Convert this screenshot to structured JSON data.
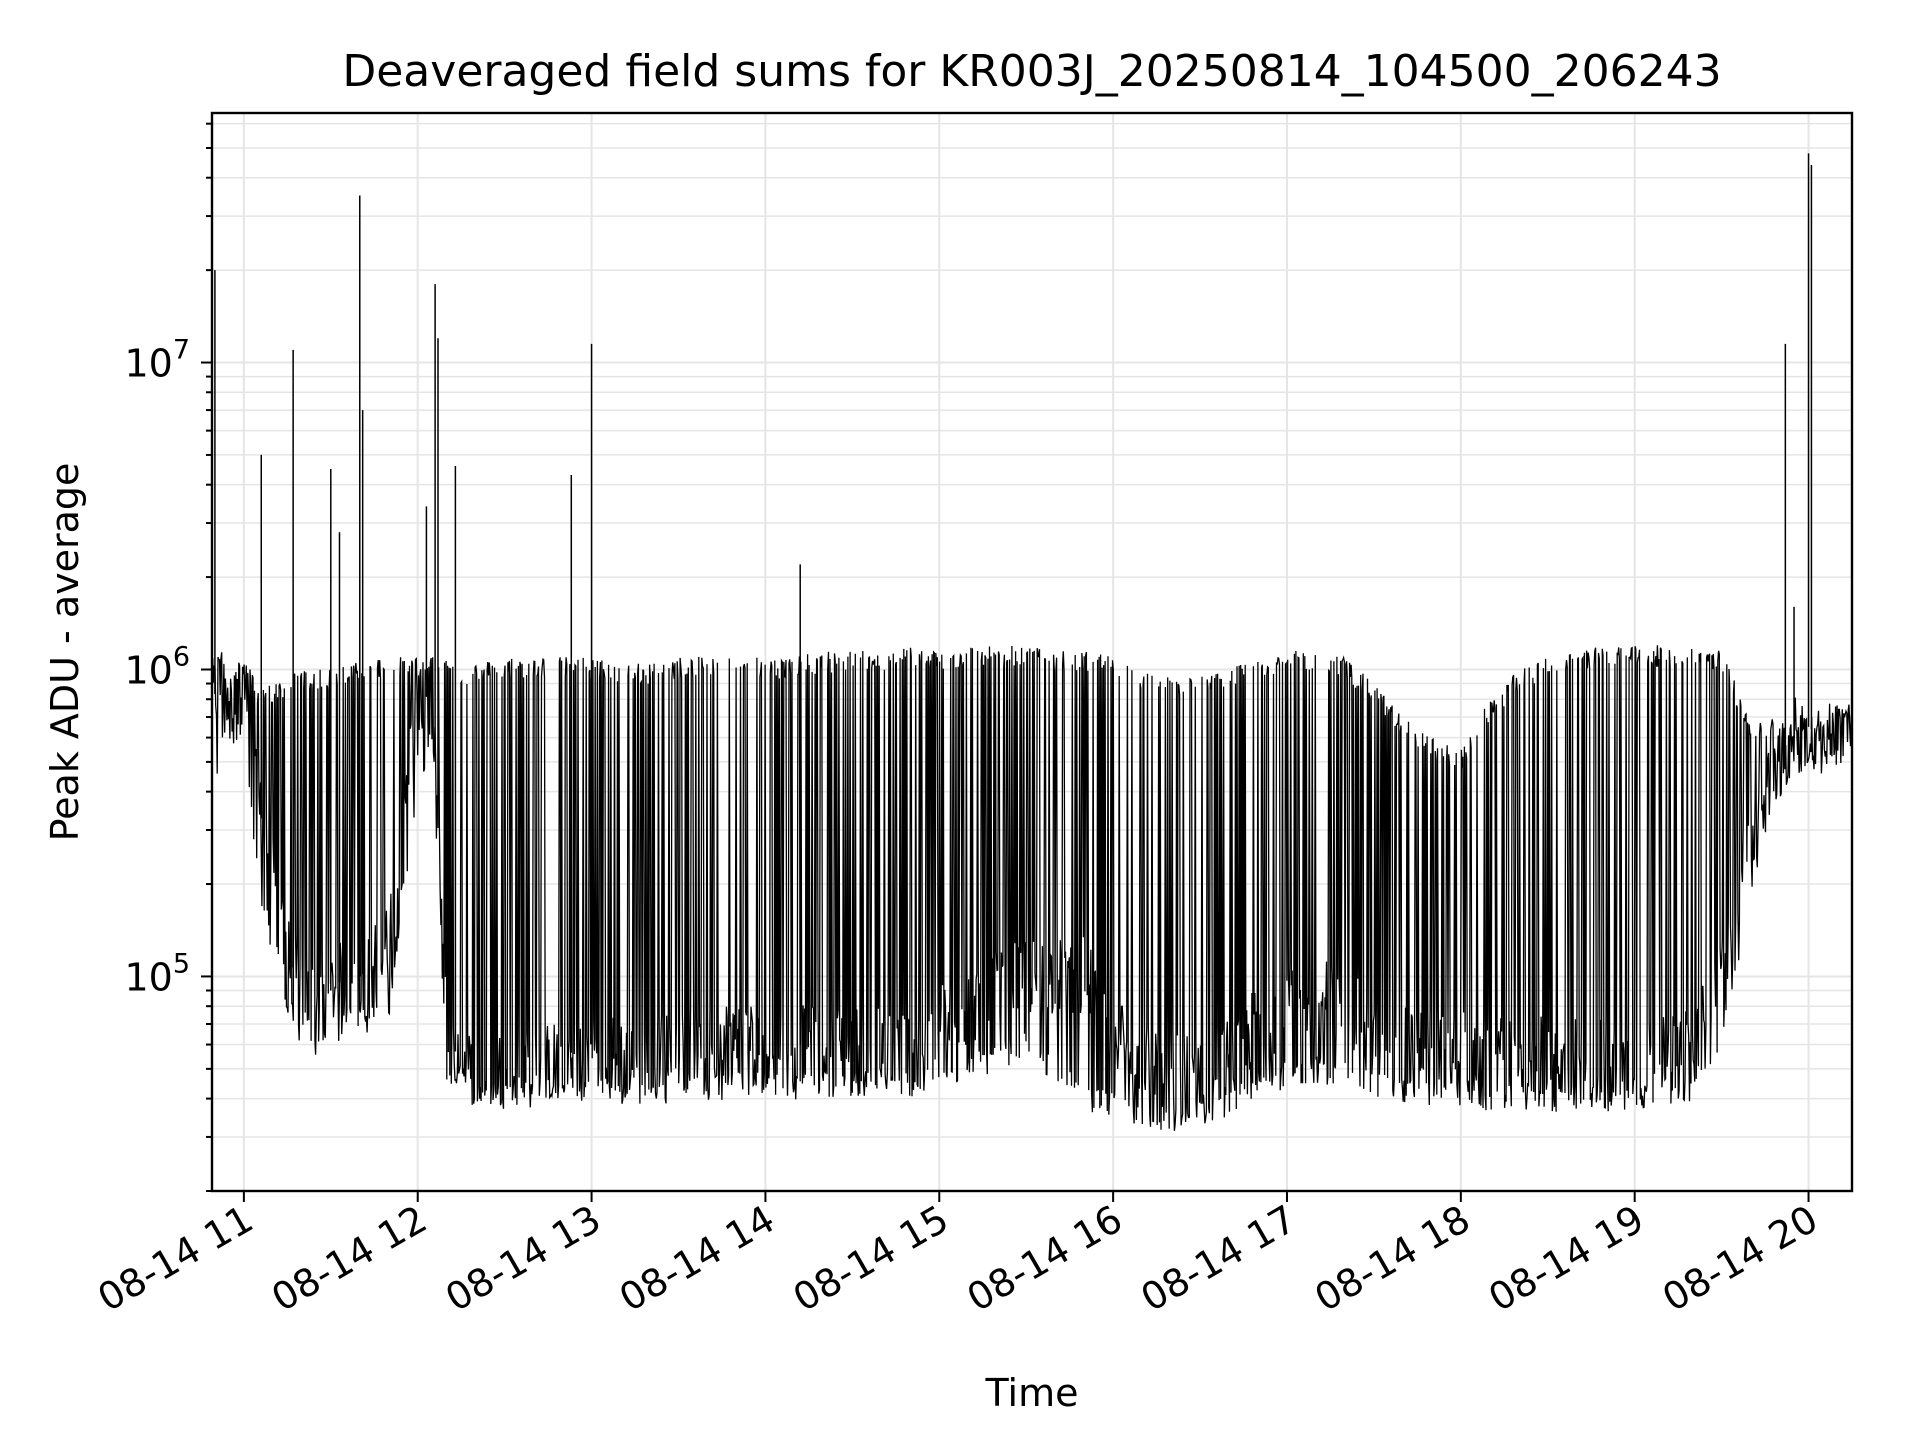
{
  "chart_data": {
    "type": "line",
    "title": "Deaveraged field sums for KR003J_20250814_104500_206243",
    "xlabel": "Time",
    "ylabel": "Peak ADU - average",
    "x_tick_labels": [
      "08-14 11",
      "08-14 12",
      "08-14 13",
      "08-14 14",
      "08-14 15",
      "08-14 16",
      "08-14 17",
      "08-14 18",
      "08-14 19",
      "08-14 20"
    ],
    "x_tick_times": [
      "2025-08-14T11:00",
      "2025-08-14T12:00",
      "2025-08-14T13:00",
      "2025-08-14T14:00",
      "2025-08-14T15:00",
      "2025-08-14T16:00",
      "2025-08-14T17:00",
      "2025-08-14T18:00",
      "2025-08-14T19:00",
      "2025-08-14T20:00"
    ],
    "xlim": [
      "2025-08-14T10:49",
      "2025-08-14T20:15"
    ],
    "y_scale": "log",
    "y_ticks": [
      {
        "value": 100000,
        "base": "10",
        "exp": "5"
      },
      {
        "value": 1000000,
        "base": "10",
        "exp": "6"
      },
      {
        "value": 10000000,
        "base": "10",
        "exp": "7"
      }
    ],
    "ylim": [
      20000,
      65000000
    ],
    "grid": true,
    "line_color": "#000000",
    "series": [
      {
        "x": [
          "2025-08-14T10:49",
          "2025-08-14T10:52",
          "2025-08-14T10:55",
          "2025-08-14T11:00",
          "2025-08-14T11:05",
          "2025-08-14T11:10",
          "2025-08-14T11:15",
          "2025-08-14T11:20",
          "2025-08-14T11:25",
          "2025-08-14T11:30",
          "2025-08-14T11:35",
          "2025-08-14T11:40",
          "2025-08-14T11:45",
          "2025-08-14T11:50",
          "2025-08-14T11:55",
          "2025-08-14T12:00",
          "2025-08-14T12:05",
          "2025-08-14T12:10",
          "2025-08-14T12:15",
          "2025-08-14T12:20",
          "2025-08-14T12:30",
          "2025-08-14T12:40",
          "2025-08-14T12:50",
          "2025-08-14T13:00",
          "2025-08-14T13:10",
          "2025-08-14T13:20",
          "2025-08-14T13:30",
          "2025-08-14T13:40",
          "2025-08-14T13:50",
          "2025-08-14T14:00",
          "2025-08-14T14:10",
          "2025-08-14T14:20",
          "2025-08-14T14:30",
          "2025-08-14T14:40",
          "2025-08-14T14:50",
          "2025-08-14T15:00",
          "2025-08-14T15:10",
          "2025-08-14T15:20",
          "2025-08-14T15:30",
          "2025-08-14T15:40",
          "2025-08-14T15:50",
          "2025-08-14T16:00",
          "2025-08-14T16:10",
          "2025-08-14T16:20",
          "2025-08-14T16:30",
          "2025-08-14T16:40",
          "2025-08-14T16:50",
          "2025-08-14T17:00",
          "2025-08-14T17:10",
          "2025-08-14T17:20",
          "2025-08-14T17:30",
          "2025-08-14T17:40",
          "2025-08-14T17:50",
          "2025-08-14T18:00",
          "2025-08-14T18:10",
          "2025-08-14T18:20",
          "2025-08-14T18:30",
          "2025-08-14T18:40",
          "2025-08-14T18:50",
          "2025-08-14T19:00",
          "2025-08-14T19:10",
          "2025-08-14T19:20",
          "2025-08-14T19:30",
          "2025-08-14T19:40",
          "2025-08-14T19:50",
          "2025-08-14T19:55",
          "2025-08-14T20:00",
          "2025-08-14T20:05",
          "2025-08-14T20:10",
          "2025-08-14T20:15"
        ],
        "y": [
          800000,
          900000,
          1000000,
          900000,
          350000,
          250000,
          120000,
          90000,
          80000,
          90000,
          100000,
          100000,
          110000,
          130000,
          400000,
          700000,
          900000,
          60000,
          55000,
          50000,
          50000,
          50000,
          55000,
          60000,
          55000,
          55000,
          60000,
          60000,
          65000,
          60000,
          60000,
          60000,
          60000,
          60000,
          60000,
          70000,
          80000,
          90000,
          100000,
          100000,
          100000,
          70000,
          55000,
          50000,
          50000,
          55000,
          70000,
          80000,
          90000,
          80000,
          65000,
          60000,
          60000,
          58000,
          55000,
          55000,
          55000,
          55000,
          55000,
          55000,
          55000,
          60000,
          100000,
          300000,
          500000,
          600000,
          650000,
          600000,
          650000,
          700000
        ],
        "envelope_upper": [
          1000000,
          1200000,
          1100000,
          1100000,
          900000,
          900000,
          950000,
          1000000,
          1000000,
          1000000,
          1050000,
          1100000,
          1100000,
          1100000,
          1100000,
          1100000,
          1150000,
          1100000,
          1050000,
          1050000,
          1100000,
          1100000,
          1100000,
          1100000,
          1050000,
          1050000,
          1100000,
          1100000,
          1150000,
          1100000,
          1100000,
          1150000,
          1150000,
          1150000,
          1200000,
          1150000,
          1200000,
          1200000,
          1200000,
          1150000,
          1150000,
          1100000,
          1000000,
          950000,
          950000,
          1000000,
          1100000,
          1150000,
          1150000,
          1100000,
          900000,
          700000,
          600000,
          550000,
          800000,
          1000000,
          1100000,
          1150000,
          1200000,
          1200000,
          1200000,
          1200000,
          1150000,
          700000,
          700000,
          700000,
          750000,
          700000,
          750000,
          800000
        ],
        "envelope_lower": [
          350000,
          600000,
          650000,
          600000,
          200000,
          130000,
          80000,
          65000,
          60000,
          65000,
          70000,
          70000,
          75000,
          80000,
          200000,
          400000,
          600000,
          50000,
          45000,
          42000,
          42000,
          42000,
          43000,
          43000,
          42000,
          42000,
          43000,
          43000,
          45000,
          45000,
          44000,
          45000,
          45000,
          45000,
          45000,
          46000,
          50000,
          55000,
          60000,
          50000,
          40000,
          38000,
          35000,
          34000,
          35000,
          38000,
          45000,
          48000,
          50000,
          48000,
          45000,
          43000,
          42000,
          42000,
          40000,
          40000,
          40000,
          40000,
          40000,
          40000,
          42000,
          43000,
          60000,
          200000,
          450000,
          500000,
          520000,
          500000,
          550000,
          600000
        ]
      }
    ],
    "spikes": [
      {
        "x": "2025-08-14T10:50",
        "y": 20000000
      },
      {
        "x": "2025-08-14T11:06",
        "y": 5000000
      },
      {
        "x": "2025-08-14T11:17",
        "y": 11000000
      },
      {
        "x": "2025-08-14T11:30",
        "y": 4500000
      },
      {
        "x": "2025-08-14T11:33",
        "y": 2800000
      },
      {
        "x": "2025-08-14T11:40",
        "y": 35000000
      },
      {
        "x": "2025-08-14T11:41",
        "y": 7000000
      },
      {
        "x": "2025-08-14T12:03",
        "y": 3400000
      },
      {
        "x": "2025-08-14T12:06",
        "y": 18000000
      },
      {
        "x": "2025-08-14T12:07",
        "y": 12000000
      },
      {
        "x": "2025-08-14T12:13",
        "y": 4600000
      },
      {
        "x": "2025-08-14T12:53",
        "y": 4300000
      },
      {
        "x": "2025-08-14T13:00",
        "y": 11500000
      },
      {
        "x": "2025-08-14T14:12",
        "y": 2200000
      },
      {
        "x": "2025-08-14T19:52",
        "y": 11500000
      },
      {
        "x": "2025-08-14T19:55",
        "y": 1600000
      },
      {
        "x": "2025-08-14T20:00",
        "y": 48000000
      },
      {
        "x": "2025-08-14T20:01",
        "y": 44000000
      }
    ]
  }
}
